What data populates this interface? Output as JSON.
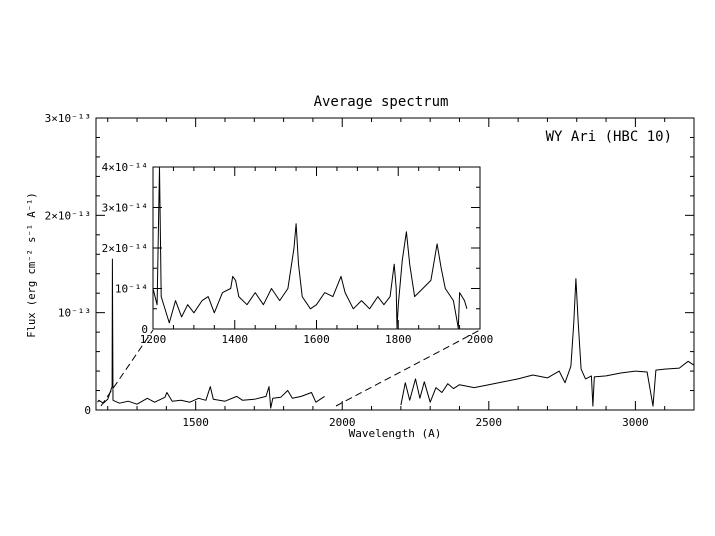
{
  "chart_data": [
    {
      "type": "line",
      "title": "Average spectrum",
      "annotation": "WY Ari (HBC 10)",
      "xlabel": "Wavelength (A)",
      "ylabel": "Flux (erg cm⁻² s⁻¹ A⁻¹)",
      "xlim": [
        1160,
        3200
      ],
      "ylim": [
        0,
        3e-13
      ],
      "x_ticks": [
        1500,
        2000,
        2500,
        3000
      ],
      "y_ticks": [
        0,
        1e-13,
        2e-13,
        3e-13
      ],
      "y_tick_labels": [
        "0",
        "10⁻¹³",
        "2×10⁻¹³",
        "3×10⁻¹³"
      ],
      "gap": [
        1960,
        2200
      ],
      "features": [
        {
          "x": 1216,
          "y": 1.55e-13
        },
        {
          "x": 1550,
          "y": 2.4e-14
        },
        {
          "x": 1750,
          "y": 2.4e-14
        },
        {
          "x": 1814,
          "y": 2e-14
        },
        {
          "x": 1895,
          "y": 1.8e-14
        },
        {
          "x": 2797,
          "y": 1.35e-13
        }
      ],
      "points": [
        [
          1165,
          8e-15
        ],
        [
          1170,
          1e-14
        ],
        [
          1185,
          7e-15
        ],
        [
          1200,
          1.1e-14
        ],
        [
          1215,
          2.4e-14
        ],
        [
          1216,
          1.55e-13
        ],
        [
          1218,
          1e-14
        ],
        [
          1240,
          7e-15
        ],
        [
          1270,
          9e-15
        ],
        [
          1300,
          6e-15
        ],
        [
          1335,
          1.2e-14
        ],
        [
          1360,
          8e-15
        ],
        [
          1395,
          1.3e-14
        ],
        [
          1402,
          1.8e-14
        ],
        [
          1420,
          9e-15
        ],
        [
          1450,
          1e-14
        ],
        [
          1480,
          8e-15
        ],
        [
          1510,
          1.2e-14
        ],
        [
          1535,
          1e-14
        ],
        [
          1550,
          2.4e-14
        ],
        [
          1560,
          1.1e-14
        ],
        [
          1600,
          9e-15
        ],
        [
          1640,
          1.4e-14
        ],
        [
          1660,
          1e-14
        ],
        [
          1700,
          1.1e-14
        ],
        [
          1740,
          1.4e-14
        ],
        [
          1750,
          2.4e-14
        ],
        [
          1756,
          2e-15
        ],
        [
          1763,
          1.2e-14
        ],
        [
          1790,
          1.3e-14
        ],
        [
          1814,
          2e-14
        ],
        [
          1830,
          1.2e-14
        ],
        [
          1860,
          1.4e-14
        ],
        [
          1895,
          1.8e-14
        ],
        [
          1910,
          8e-15
        ],
        [
          1930,
          1.2e-14
        ],
        [
          1940,
          1.4e-14
        ],
        [
          2200,
          5e-15
        ],
        [
          2215,
          2.8e-14
        ],
        [
          2230,
          1e-14
        ],
        [
          2250,
          3.2e-14
        ],
        [
          2265,
          1.2e-14
        ],
        [
          2280,
          2.9e-14
        ],
        [
          2300,
          8e-15
        ],
        [
          2320,
          2.3e-14
        ],
        [
          2340,
          1.8e-14
        ],
        [
          2360,
          2.7e-14
        ],
        [
          2380,
          2.2e-14
        ],
        [
          2400,
          2.6e-14
        ],
        [
          2450,
          2.3e-14
        ],
        [
          2500,
          2.6e-14
        ],
        [
          2550,
          2.9e-14
        ],
        [
          2600,
          3.2e-14
        ],
        [
          2650,
          3.6e-14
        ],
        [
          2700,
          3.3e-14
        ],
        [
          2740,
          4e-14
        ],
        [
          2760,
          2.8e-14
        ],
        [
          2780,
          4.5e-14
        ],
        [
          2790,
          9e-14
        ],
        [
          2797,
          1.35e-13
        ],
        [
          2805,
          9e-14
        ],
        [
          2815,
          4.2e-14
        ],
        [
          2830,
          3.2e-14
        ],
        [
          2850,
          3.5e-14
        ],
        [
          2855,
          4e-15
        ],
        [
          2860,
          3.4e-14
        ],
        [
          2900,
          3.5e-14
        ],
        [
          2950,
          3.8e-14
        ],
        [
          3000,
          4e-14
        ],
        [
          3040,
          3.9e-14
        ],
        [
          3060,
          4e-15
        ],
        [
          3070,
          4.1e-14
        ],
        [
          3100,
          4.2e-14
        ],
        [
          3150,
          4.3e-14
        ],
        [
          3180,
          5e-14
        ],
        [
          3200,
          4.6e-14
        ]
      ]
    },
    {
      "type": "line",
      "xlim": [
        1200,
        2000
      ],
      "ylim": [
        0,
        4e-14
      ],
      "x_ticks": [
        1200,
        1400,
        1600,
        1800,
        2000
      ],
      "y_ticks": [
        0,
        1e-14,
        2e-14,
        3e-14,
        4e-14
      ],
      "y_tick_labels": [
        "0",
        "10⁻¹⁴",
        "2×10⁻¹⁴",
        "3×10⁻¹⁴",
        "4×10⁻¹⁴"
      ],
      "points": [
        [
          1200,
          1e-14
        ],
        [
          1210,
          6e-15
        ],
        [
          1216,
          4e-14
        ],
        [
          1220,
          8e-15
        ],
        [
          1240,
          1.5e-15
        ],
        [
          1255,
          7e-15
        ],
        [
          1270,
          3e-15
        ],
        [
          1285,
          6e-15
        ],
        [
          1300,
          4e-15
        ],
        [
          1320,
          7e-15
        ],
        [
          1335,
          8e-15
        ],
        [
          1350,
          4e-15
        ],
        [
          1370,
          9e-15
        ],
        [
          1390,
          1e-14
        ],
        [
          1395,
          1.3e-14
        ],
        [
          1402,
          1.2e-14
        ],
        [
          1410,
          8e-15
        ],
        [
          1430,
          6e-15
        ],
        [
          1450,
          9e-15
        ],
        [
          1470,
          6e-15
        ],
        [
          1490,
          1e-14
        ],
        [
          1510,
          7e-15
        ],
        [
          1530,
          1e-14
        ],
        [
          1545,
          2e-14
        ],
        [
          1550,
          2.6e-14
        ],
        [
          1556,
          1.6e-14
        ],
        [
          1565,
          8e-15
        ],
        [
          1585,
          5e-15
        ],
        [
          1600,
          6e-15
        ],
        [
          1620,
          9e-15
        ],
        [
          1640,
          8e-15
        ],
        [
          1660,
          1.3e-14
        ],
        [
          1670,
          9e-15
        ],
        [
          1690,
          5e-15
        ],
        [
          1710,
          7e-15
        ],
        [
          1730,
          5e-15
        ],
        [
          1750,
          8e-15
        ],
        [
          1765,
          6e-15
        ],
        [
          1780,
          8e-15
        ],
        [
          1790,
          1.6e-14
        ],
        [
          1795,
          1e-14
        ],
        [
          1797,
          2e-16
        ],
        [
          1800,
          6e-15
        ],
        [
          1810,
          1.7e-14
        ],
        [
          1820,
          2.4e-14
        ],
        [
          1828,
          1.6e-14
        ],
        [
          1840,
          8e-15
        ],
        [
          1860,
          1e-14
        ],
        [
          1880,
          1.2e-14
        ],
        [
          1895,
          2.1e-14
        ],
        [
          1905,
          1.5e-14
        ],
        [
          1915,
          1e-14
        ],
        [
          1935,
          7e-15
        ],
        [
          1947,
          2e-16
        ],
        [
          1950,
          9e-15
        ],
        [
          1962,
          7e-15
        ],
        [
          1968,
          5e-15
        ]
      ]
    }
  ]
}
